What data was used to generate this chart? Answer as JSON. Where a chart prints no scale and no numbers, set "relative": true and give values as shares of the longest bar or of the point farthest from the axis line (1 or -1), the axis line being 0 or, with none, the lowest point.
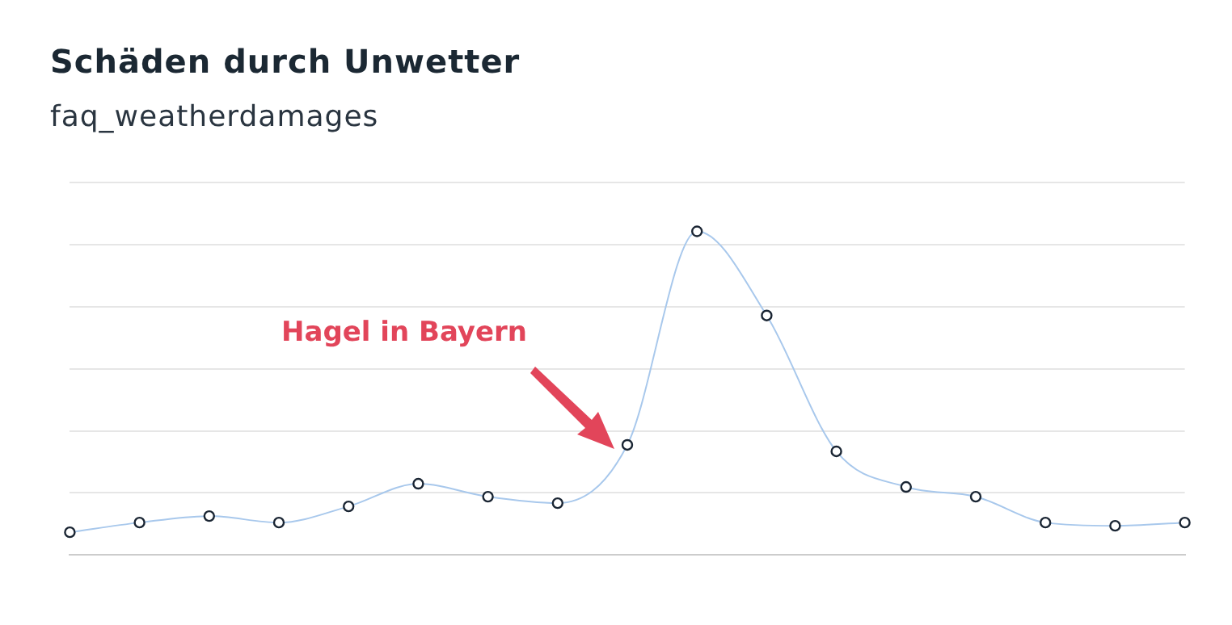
{
  "chart_data": {
    "type": "line",
    "title": "Schäden durch Unwetter",
    "subtitle": "faq_weatherdamages",
    "relative": true,
    "categories": [
      null,
      null,
      null,
      null,
      null,
      null,
      null,
      null,
      null,
      null,
      null,
      null,
      null,
      null,
      null,
      null,
      null
    ],
    "series": [
      {
        "color": "#a8c8ec",
        "values": [
          0.07,
          0.1,
          0.12,
          0.1,
          0.15,
          0.22,
          0.18,
          0.16,
          0.34,
          1,
          0.74,
          0.32,
          0.21,
          0.18,
          0.1,
          0.09,
          0.1
        ]
      }
    ],
    "annotations": [
      "Hagel in Bayern"
    ],
    "grid": "y",
    "marker": "circle",
    "legend": false
  }
}
